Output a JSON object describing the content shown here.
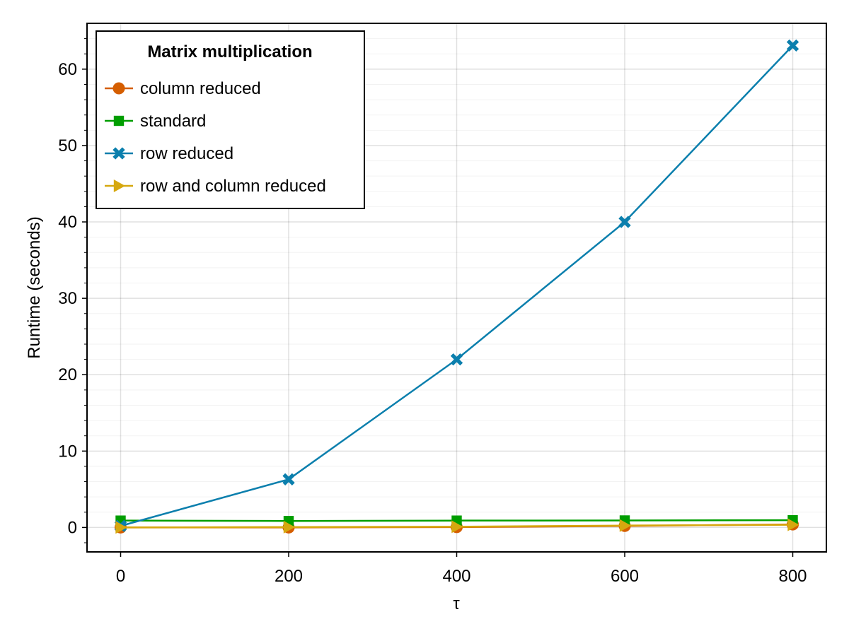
{
  "chart_data": {
    "type": "line",
    "title": "",
    "xlabel": "τ",
    "ylabel": "Runtime (seconds)",
    "x": [
      0,
      200,
      400,
      600,
      800
    ],
    "xlim": [
      -40,
      840
    ],
    "ylim": [
      -3.2,
      66
    ],
    "xticks": [
      "0",
      "200",
      "400",
      "600",
      "800"
    ],
    "yticks": [
      "0",
      "10",
      "20",
      "30",
      "40",
      "50",
      "60"
    ],
    "grid": true,
    "legend": {
      "title": "Matrix multiplication",
      "placement": "top-left"
    },
    "series": [
      {
        "name": "column reduced",
        "marker": "circle",
        "color": "#d55e00",
        "values": [
          0.0,
          0.0,
          0.05,
          0.2,
          0.4
        ]
      },
      {
        "name": "standard",
        "marker": "square",
        "color": "#009e00",
        "values": [
          0.9,
          0.85,
          0.9,
          0.92,
          0.95
        ]
      },
      {
        "name": "row reduced",
        "marker": "cross",
        "color": "#0b7fad",
        "values": [
          0.2,
          6.3,
          22.0,
          40.0,
          63.1
        ]
      },
      {
        "name": "row and column reduced",
        "marker": "triangle-right",
        "color": "#d6a80f",
        "values": [
          0.0,
          0.05,
          0.1,
          0.25,
          0.35
        ]
      }
    ]
  }
}
